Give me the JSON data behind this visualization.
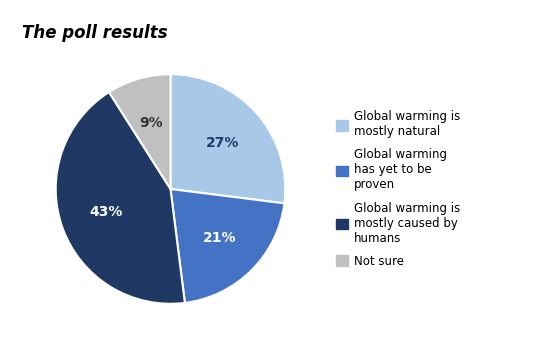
{
  "title": "The poll results",
  "slices": [
    27,
    21,
    43,
    9
  ],
  "colors": [
    "#a8c8e8",
    "#4472c4",
    "#1f3864",
    "#c0c0c0"
  ],
  "labels": [
    "27%",
    "21%",
    "43%",
    "9%"
  ],
  "legend_labels": [
    "Global warming is\nmostly natural",
    "Global warming\nhas yet to be\nproven",
    "Global warming is\nmostly caused by\nhumans",
    "Not sure"
  ],
  "startangle": 90,
  "label_colors": [
    "#1f3864",
    "#ffffff",
    "#ffffff",
    "#333333"
  ],
  "label_fontsize": 10,
  "title_fontsize": 12,
  "legend_fontsize": 8.5
}
